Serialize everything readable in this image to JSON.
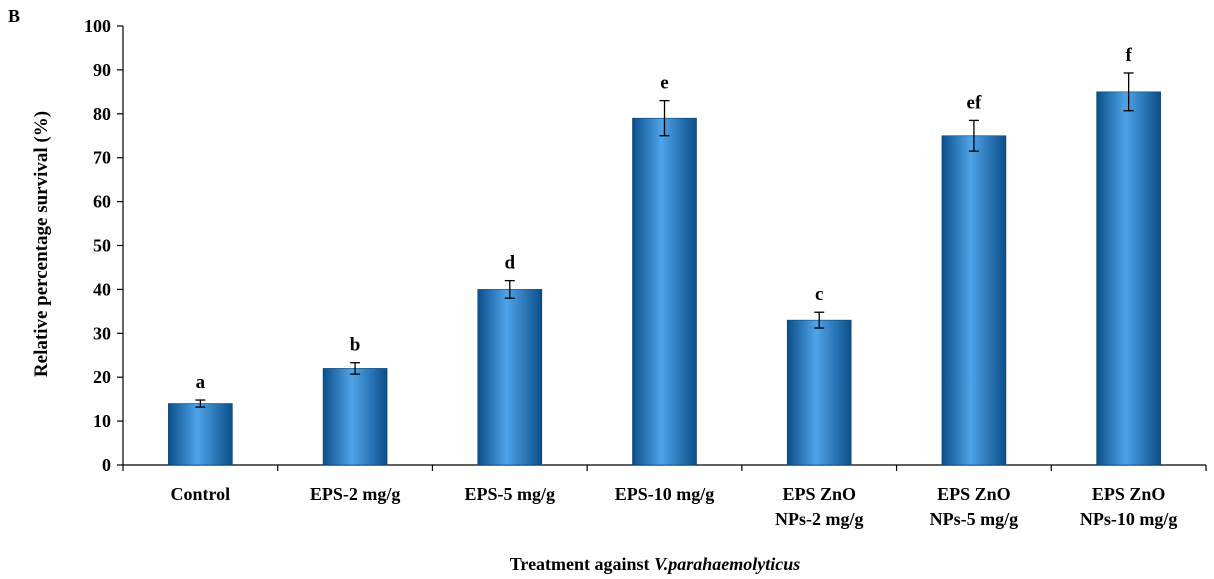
{
  "panel_label": "B",
  "chart_data": {
    "type": "bar",
    "categories": [
      [
        "Control"
      ],
      [
        "EPS-2 mg/g"
      ],
      [
        "EPS-5 mg/g"
      ],
      [
        "EPS-10 mg/g"
      ],
      [
        "EPS ZnO",
        "NPs-2 mg/g"
      ],
      [
        "EPS ZnO",
        "NPs-5 mg/g"
      ],
      [
        "EPS ZnO",
        "NPs-10 mg/g"
      ]
    ],
    "values": [
      14,
      22,
      40,
      79,
      33,
      75,
      85
    ],
    "errors": [
      0.8,
      1.3,
      2.0,
      4.0,
      1.8,
      3.5,
      4.3
    ],
    "significance_letters": [
      "a",
      "b",
      "d",
      "e",
      "c",
      "ef",
      "f"
    ],
    "ylabel": "Relative percentage survival  (%)",
    "xlabel_prefix": "Treatment against ",
    "xlabel_italic": "V.parahaemolyticus",
    "ylim": [
      0,
      100
    ],
    "yticks": [
      0,
      10,
      20,
      30,
      40,
      50,
      60,
      70,
      80,
      90,
      100
    ],
    "bar_color_dark": "#0b4f8a",
    "bar_color_light": "#4fa3e8",
    "grid": false,
    "legend": "none"
  }
}
